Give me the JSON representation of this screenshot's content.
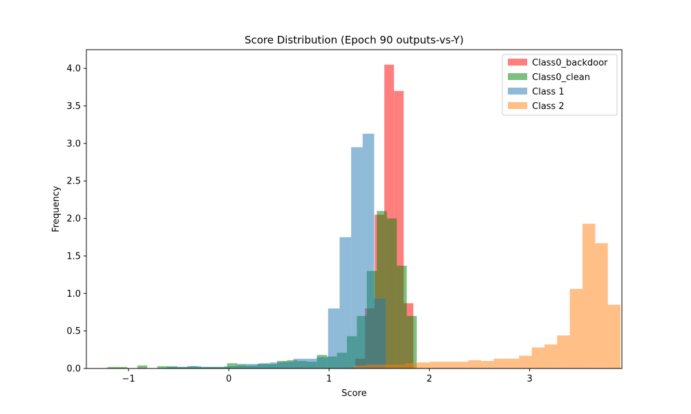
{
  "chart_data": {
    "type": "histogram",
    "title": "Score Distribution (Epoch 90 outputs-vs-Y)",
    "xlabel": "Score",
    "ylabel": "Frequency",
    "xlim": [
      -1.42,
      3.92
    ],
    "ylim": [
      0,
      4.25
    ],
    "xticks": [
      -1,
      0,
      1,
      2,
      3
    ],
    "xtick_labels": [
      "−1",
      "0",
      "1",
      "2",
      "3"
    ],
    "yticks": [
      0.0,
      0.5,
      1.0,
      1.5,
      2.0,
      2.5,
      3.0,
      3.5,
      4.0
    ],
    "ytick_labels": [
      "0.0",
      "0.5",
      "1.0",
      "1.5",
      "2.0",
      "2.5",
      "3.0",
      "3.5",
      "4.0"
    ],
    "grid": false,
    "legend_position": "top-right",
    "series": [
      {
        "name": "Class0_backdoor",
        "color": "#ff0000",
        "opacity": 0.5,
        "bin_start": 1.165,
        "bin_width": 0.0965,
        "values": [
          0.01,
          0.13,
          0.8,
          2.05,
          4.05,
          3.7,
          0.87
        ]
      },
      {
        "name": "Class0_clean",
        "color": "#008000",
        "opacity": 0.5,
        "bin_start": -1.21,
        "bin_width": 0.0995,
        "values": [
          0.02,
          0.02,
          0.0,
          0.04,
          0.0,
          0.03,
          0.03,
          0.02,
          0.03,
          0.02,
          0.02,
          0.02,
          0.07,
          0.06,
          0.04,
          0.06,
          0.06,
          0.1,
          0.11,
          0.1,
          0.09,
          0.18,
          0.16,
          0.21,
          0.43,
          0.7,
          1.3,
          2.1,
          2.0,
          1.37,
          0.7
        ]
      },
      {
        "name": "Class 1",
        "color": "#1f77b4",
        "opacity": 0.5,
        "bin_start": -0.62,
        "bin_width": 0.115,
        "values": [
          0.02,
          0.02,
          0.03,
          0.02,
          0.02,
          0.03,
          0.04,
          0.06,
          0.07,
          0.08,
          0.09,
          0.13,
          0.13,
          0.15,
          0.8,
          1.75,
          2.95,
          3.13,
          0.93
        ]
      },
      {
        "name": "Class 2",
        "color": "#ff7f0e",
        "opacity": 0.5,
        "bin_start": 1.25,
        "bin_width": 0.1265,
        "values": [
          0.04,
          0.05,
          0.05,
          0.05,
          0.07,
          0.08,
          0.09,
          0.09,
          0.09,
          0.11,
          0.1,
          0.13,
          0.13,
          0.17,
          0.28,
          0.32,
          0.44,
          1.06,
          1.93,
          1.67,
          0.85
        ]
      }
    ]
  }
}
